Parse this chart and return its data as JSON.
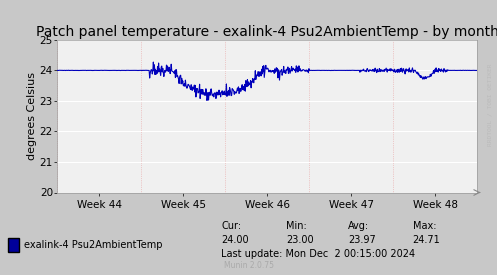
{
  "title": "Patch panel temperature - exalink-4 Psu2AmbientTemp - by month",
  "ylabel": "degrees Celsius",
  "ylim": [
    20,
    25
  ],
  "yticks": [
    20,
    21,
    22,
    23,
    24,
    25
  ],
  "xtick_labels": [
    "Week 44",
    "Week 45",
    "Week 46",
    "Week 47",
    "Week 48"
  ],
  "line_color": "#0000bb",
  "bg_color": "#c8c8c8",
  "plot_bg_color": "#f0f0f0",
  "grid_color_white": "#ffffff",
  "grid_color_pink": "#e8a0a0",
  "title_fontsize": 10,
  "axis_fontsize": 8,
  "tick_fontsize": 7.5,
  "legend_label": "exalink-4 Psu2AmbientTemp",
  "legend_color": "#00009a",
  "cur_val": "24.00",
  "min_val": "23.00",
  "avg_val": "23.97",
  "max_val": "24.71",
  "last_update": "Last update: Mon Dec  2 00:15:00 2024",
  "munin_version": "Munin 2.0.75",
  "watermark": "RRDTOOL / TOBI OETIKER",
  "num_points": 800,
  "baseline": 24.0
}
